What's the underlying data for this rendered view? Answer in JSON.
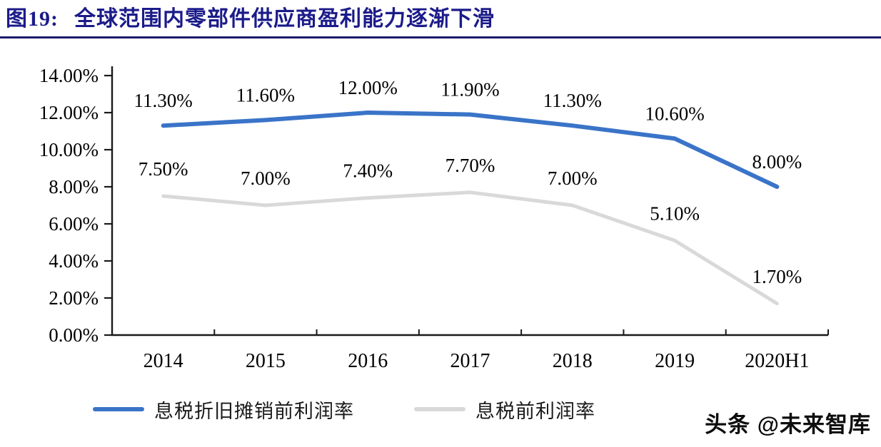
{
  "header": {
    "figure_label": "图19:",
    "title": "全球范围内零部件供应商盈利能力逐渐下滑",
    "title_color": "#1b1b8a",
    "rule_color": "#1b1b6e"
  },
  "chart_data": {
    "type": "line",
    "categories": [
      "2014",
      "2015",
      "2016",
      "2017",
      "2018",
      "2019",
      "2020H1"
    ],
    "series": [
      {
        "name": "息税折旧摊销前利润率",
        "color": "#3a74c8",
        "values": [
          11.3,
          11.6,
          12.0,
          11.9,
          11.3,
          10.6,
          8.0
        ],
        "labels": [
          "11.30%",
          "11.60%",
          "12.00%",
          "11.90%",
          "11.30%",
          "10.60%",
          "8.00%"
        ]
      },
      {
        "name": "息税前利润率",
        "color": "#d9d9d9",
        "values": [
          7.5,
          7.0,
          7.4,
          7.7,
          7.0,
          5.1,
          1.7
        ],
        "labels": [
          "7.50%",
          "7.00%",
          "7.40%",
          "7.70%",
          "7.00%",
          "5.10%",
          "1.70%"
        ]
      }
    ],
    "ylim": [
      0,
      14
    ],
    "ytick_labels": [
      "0.00%",
      "2.00%",
      "4.00%",
      "6.00%",
      "8.00%",
      "10.00%",
      "12.00%",
      "14.00%"
    ],
    "grid": false,
    "legend_position": "bottom",
    "axis_color": "#1a1a1a",
    "label_color": "#000000"
  },
  "watermark": {
    "text": "头条 @未来智库"
  }
}
